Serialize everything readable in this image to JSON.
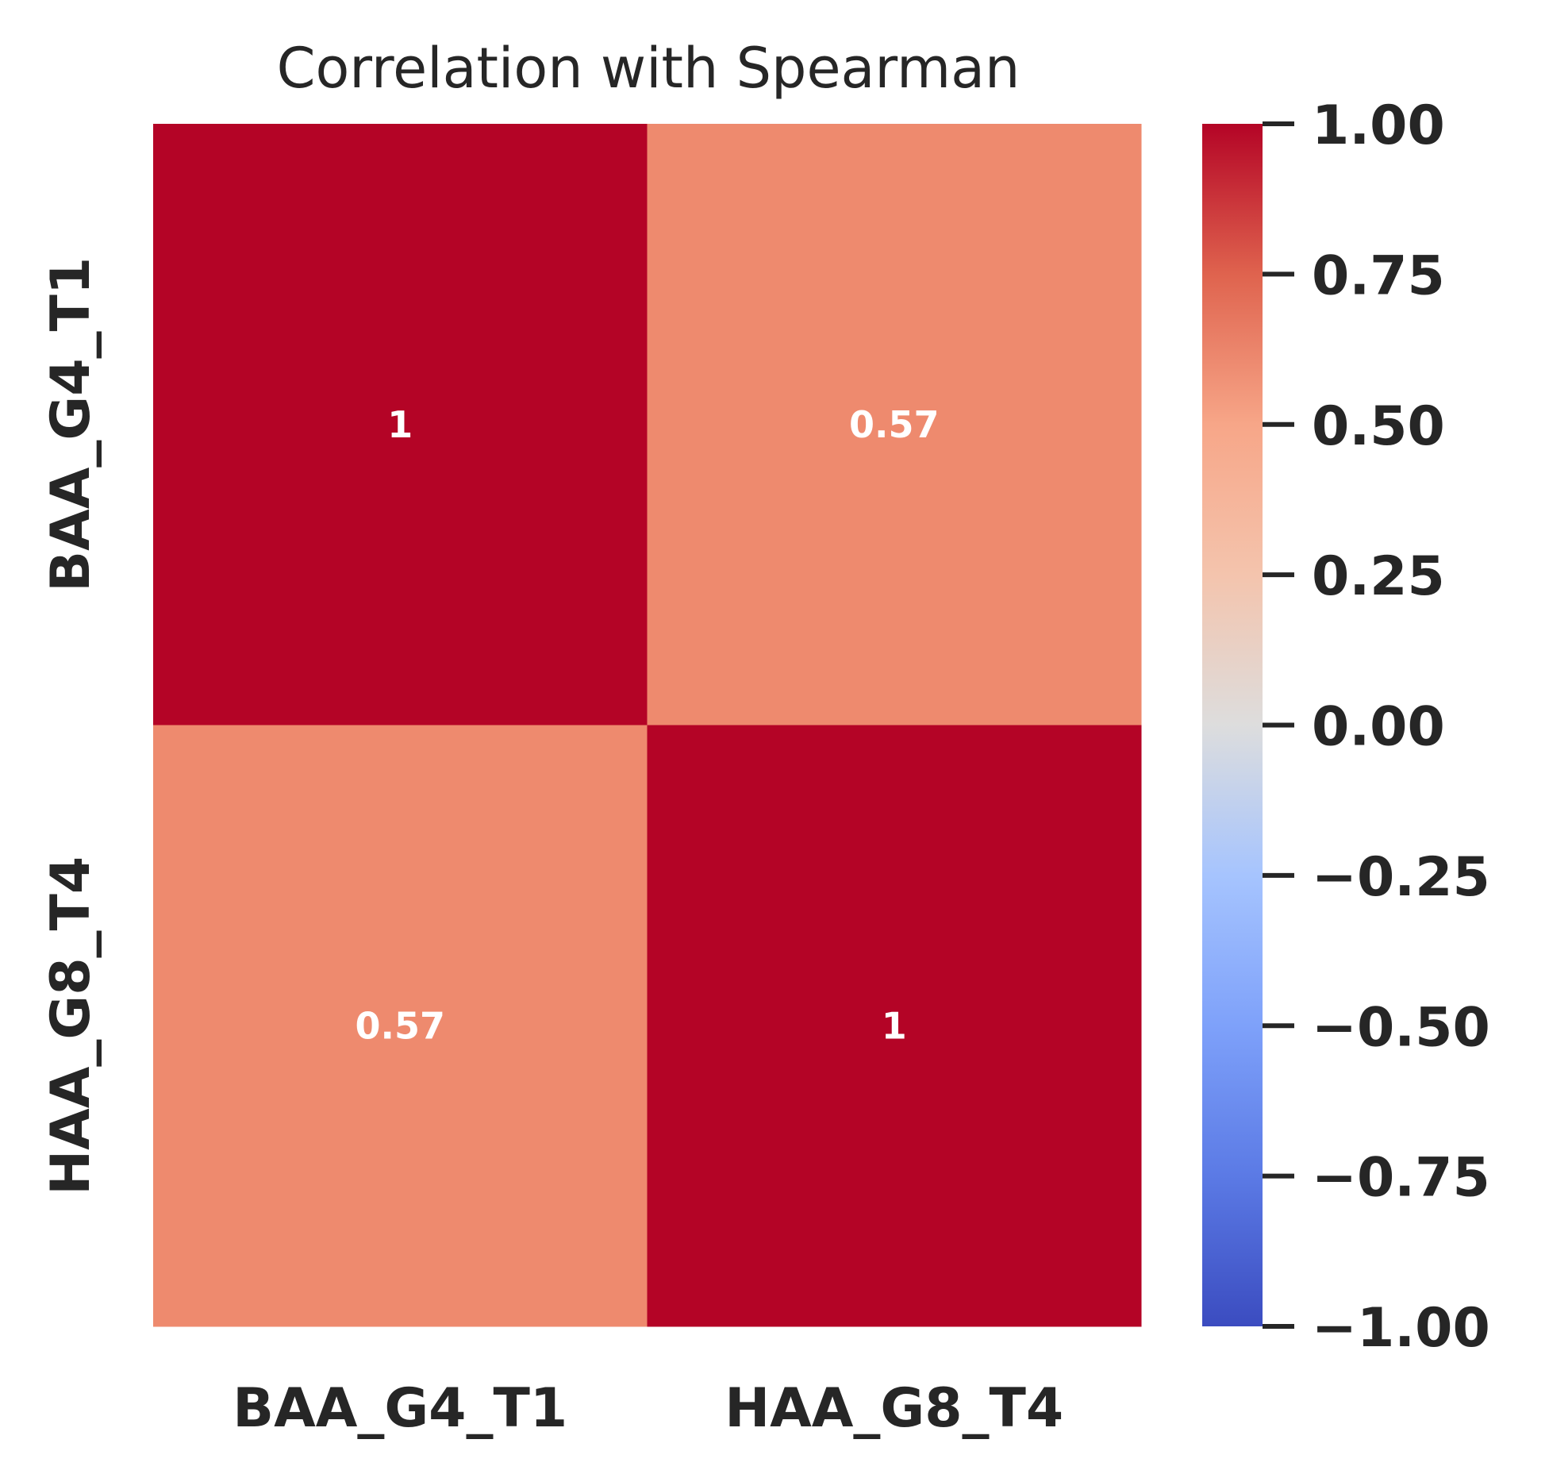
{
  "chart_data": {
    "type": "heatmap",
    "title": "Correlation with Spearman",
    "x_categories": [
      "BAA_G4_T1",
      "HAA_G8_T4"
    ],
    "y_categories": [
      "BAA_G4_T1",
      "HAA_G8_T4"
    ],
    "values": [
      [
        1,
        0.57
      ],
      [
        0.57,
        1
      ]
    ],
    "annotations": [
      [
        "1",
        "0.57"
      ],
      [
        "0.57",
        "1"
      ]
    ],
    "colormap": "coolwarm",
    "vmin": -1.0,
    "vmax": 1.0,
    "colorbar_ticks": [
      1.0,
      0.75,
      0.5,
      0.25,
      0.0,
      -0.25,
      -0.5,
      -0.75,
      -1.0
    ],
    "colorbar_tick_labels": [
      "1.00",
      "0.75",
      "0.50",
      "0.25",
      "0.00",
      "−0.25",
      "−0.50",
      "−0.75",
      "−1.00"
    ],
    "colors": {
      "high": "#b40426",
      "mid": "#dddddd",
      "low": "#3b4cc0",
      "cell_057": "#ee8a6e"
    }
  }
}
